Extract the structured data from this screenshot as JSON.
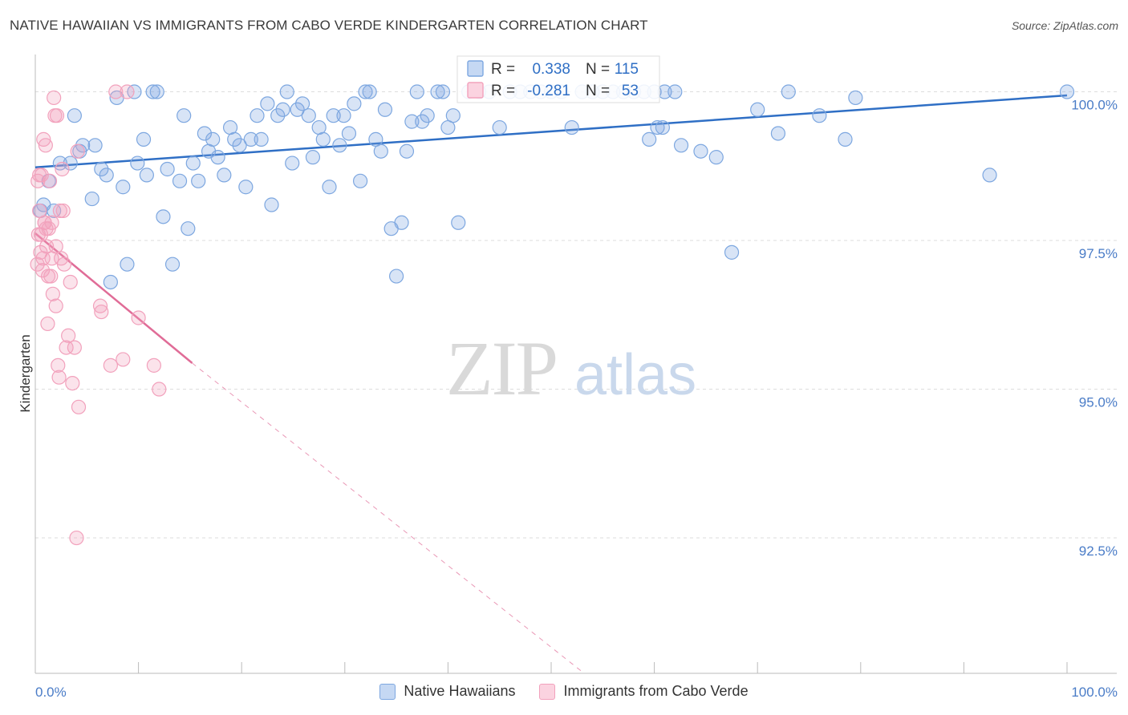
{
  "title": "NATIVE HAWAIIAN VS IMMIGRANTS FROM CABO VERDE KINDERGARTEN CORRELATION CHART",
  "source": "Source: ZipAtlas.com",
  "watermark": {
    "zip": "ZIP",
    "atlas": "atlas"
  },
  "chart_data": {
    "type": "scatter",
    "xlabel": "",
    "ylabel": "Kindergarten",
    "xlim": [
      0,
      100
    ],
    "ylim": [
      90.25,
      100.6
    ],
    "x_tick_labels": {
      "left": "0.0%",
      "right": "100.0%"
    },
    "y_ticks": [
      {
        "value": 100.0,
        "label": "100.0%"
      },
      {
        "value": 97.5,
        "label": "97.5%"
      },
      {
        "value": 95.0,
        "label": "95.0%"
      },
      {
        "value": 92.5,
        "label": "92.5%"
      }
    ],
    "legend_position": "top-center",
    "series": [
      {
        "name": "Native Hawaiians",
        "color": "#7da7e0",
        "line_color": "#2f6fc5",
        "r_label": "R =",
        "r_value": "0.338",
        "n_label": "N =",
        "n_value": "115",
        "trend": {
          "x0": 0,
          "y0": 98.73,
          "x1": 100,
          "y1": 99.94
        },
        "points": [
          [
            0.5,
            98.0
          ],
          [
            0.8,
            98.1
          ],
          [
            1.3,
            98.5
          ],
          [
            1.8,
            98.0
          ],
          [
            2.4,
            98.8
          ],
          [
            3.4,
            98.8
          ],
          [
            3.8,
            99.6
          ],
          [
            4.3,
            99.0
          ],
          [
            4.6,
            99.1
          ],
          [
            5.5,
            98.2
          ],
          [
            5.8,
            99.1
          ],
          [
            6.4,
            98.7
          ],
          [
            6.9,
            98.6
          ],
          [
            7.3,
            96.8
          ],
          [
            7.9,
            99.9
          ],
          [
            8.5,
            98.4
          ],
          [
            8.9,
            97.1
          ],
          [
            9.6,
            100.0
          ],
          [
            9.9,
            98.8
          ],
          [
            10.5,
            99.2
          ],
          [
            10.8,
            98.6
          ],
          [
            11.4,
            100.0
          ],
          [
            11.8,
            100.0
          ],
          [
            12.4,
            97.9
          ],
          [
            12.8,
            98.7
          ],
          [
            13.3,
            97.1
          ],
          [
            14.0,
            98.5
          ],
          [
            14.4,
            99.6
          ],
          [
            14.8,
            97.7
          ],
          [
            15.3,
            98.8
          ],
          [
            15.8,
            98.5
          ],
          [
            16.4,
            99.3
          ],
          [
            16.8,
            99.0
          ],
          [
            17.2,
            99.2
          ],
          [
            17.7,
            98.9
          ],
          [
            18.3,
            98.6
          ],
          [
            18.9,
            99.4
          ],
          [
            19.3,
            99.2
          ],
          [
            19.8,
            99.1
          ],
          [
            20.4,
            98.4
          ],
          [
            20.9,
            99.2
          ],
          [
            21.5,
            99.6
          ],
          [
            21.9,
            99.2
          ],
          [
            22.5,
            99.8
          ],
          [
            22.9,
            98.1
          ],
          [
            23.5,
            99.6
          ],
          [
            24.0,
            99.7
          ],
          [
            24.4,
            100.0
          ],
          [
            24.9,
            98.8
          ],
          [
            25.4,
            99.7
          ],
          [
            25.9,
            99.8
          ],
          [
            26.5,
            99.6
          ],
          [
            26.9,
            98.9
          ],
          [
            27.5,
            99.4
          ],
          [
            27.9,
            99.2
          ],
          [
            28.5,
            98.4
          ],
          [
            28.9,
            99.6
          ],
          [
            29.5,
            99.1
          ],
          [
            29.9,
            99.6
          ],
          [
            30.4,
            99.3
          ],
          [
            30.9,
            99.8
          ],
          [
            31.5,
            98.5
          ],
          [
            32.0,
            100.0
          ],
          [
            32.4,
            100.0
          ],
          [
            33.0,
            99.2
          ],
          [
            33.5,
            99.0
          ],
          [
            33.9,
            99.7
          ],
          [
            34.5,
            97.7
          ],
          [
            35.0,
            96.9
          ],
          [
            35.5,
            97.8
          ],
          [
            36.0,
            99.0
          ],
          [
            36.5,
            99.5
          ],
          [
            37.0,
            100.0
          ],
          [
            37.5,
            99.5
          ],
          [
            38.0,
            99.6
          ],
          [
            39.0,
            100.0
          ],
          [
            39.5,
            100.0
          ],
          [
            40.0,
            99.4
          ],
          [
            40.5,
            99.6
          ],
          [
            41.0,
            97.8
          ],
          [
            42.0,
            100.0
          ],
          [
            43.0,
            100.0
          ],
          [
            44.0,
            100.0
          ],
          [
            45.0,
            99.4
          ],
          [
            46.0,
            100.0
          ],
          [
            47.0,
            100.0
          ],
          [
            48.0,
            100.0
          ],
          [
            49.0,
            100.0
          ],
          [
            50.0,
            100.0
          ],
          [
            51.0,
            100.0
          ],
          [
            52.0,
            99.4
          ],
          [
            53.0,
            100.0
          ],
          [
            54.0,
            100.0
          ],
          [
            55.0,
            100.0
          ],
          [
            56.0,
            100.0
          ],
          [
            57.0,
            100.0
          ],
          [
            58.0,
            100.0
          ],
          [
            59.0,
            100.0
          ],
          [
            60.0,
            100.0
          ],
          [
            61.0,
            100.0
          ],
          [
            62.0,
            100.0
          ],
          [
            60.3,
            99.4
          ],
          [
            59.5,
            99.2
          ],
          [
            60.8,
            99.4
          ],
          [
            62.6,
            99.1
          ],
          [
            64.5,
            99.0
          ],
          [
            66.0,
            98.9
          ],
          [
            67.5,
            97.3
          ],
          [
            70.0,
            99.7
          ],
          [
            72.0,
            99.3
          ],
          [
            73.0,
            100.0
          ],
          [
            76.0,
            99.6
          ],
          [
            78.5,
            99.2
          ],
          [
            79.5,
            99.9
          ],
          [
            92.5,
            98.6
          ],
          [
            100.0,
            100.0
          ]
        ]
      },
      {
        "name": "Immigrants from Cabo Verde",
        "color": "#f2a1bc",
        "line_color": "#e06c97",
        "r_label": "R =",
        "r_value": "-0.281",
        "n_label": "N =",
        "n_value": "53",
        "trend": {
          "x0": 0,
          "y0": 97.62,
          "x1": 15.2,
          "y1": 95.44
        },
        "trend_dashed": {
          "x0": 15.2,
          "y0": 95.44,
          "x1": 53.0,
          "y1": 90.25
        },
        "points": [
          [
            0.2,
            97.1
          ],
          [
            0.3,
            97.6
          ],
          [
            0.4,
            98.0
          ],
          [
            0.5,
            97.3
          ],
          [
            0.6,
            98.6
          ],
          [
            0.7,
            97.0
          ],
          [
            0.8,
            99.2
          ],
          [
            0.9,
            97.8
          ],
          [
            1.0,
            99.1
          ],
          [
            1.1,
            97.4
          ],
          [
            1.2,
            96.1
          ],
          [
            1.3,
            97.7
          ],
          [
            1.4,
            98.5
          ],
          [
            1.5,
            96.9
          ],
          [
            1.6,
            97.8
          ],
          [
            1.7,
            96.6
          ],
          [
            1.8,
            99.9
          ],
          [
            1.9,
            99.6
          ],
          [
            2.0,
            96.4
          ],
          [
            2.1,
            99.6
          ],
          [
            2.2,
            95.4
          ],
          [
            2.3,
            95.2
          ],
          [
            2.4,
            98.0
          ],
          [
            2.5,
            97.2
          ],
          [
            2.6,
            98.7
          ],
          [
            2.8,
            97.1
          ],
          [
            3.0,
            95.7
          ],
          [
            3.2,
            95.9
          ],
          [
            3.4,
            96.8
          ],
          [
            3.6,
            95.1
          ],
          [
            3.8,
            95.7
          ],
          [
            4.0,
            92.5
          ],
          [
            4.1,
            99.0
          ],
          [
            4.2,
            94.7
          ],
          [
            6.3,
            96.4
          ],
          [
            6.4,
            96.3
          ],
          [
            7.3,
            95.4
          ],
          [
            7.8,
            100.0
          ],
          [
            8.5,
            95.5
          ],
          [
            8.9,
            100.0
          ],
          [
            10.0,
            96.2
          ],
          [
            11.5,
            95.4
          ],
          [
            12.0,
            95.0
          ],
          [
            0.25,
            98.5
          ],
          [
            0.55,
            97.6
          ],
          [
            0.9,
            97.8
          ],
          [
            1.25,
            96.9
          ],
          [
            1.6,
            97.2
          ],
          [
            2.0,
            97.4
          ],
          [
            0.4,
            98.6
          ],
          [
            0.75,
            97.2
          ],
          [
            1.05,
            97.7
          ],
          [
            2.7,
            98.0
          ]
        ]
      }
    ]
  },
  "legend_bottom": [
    "Native Hawaiians",
    "Immigrants from Cabo Verde"
  ]
}
